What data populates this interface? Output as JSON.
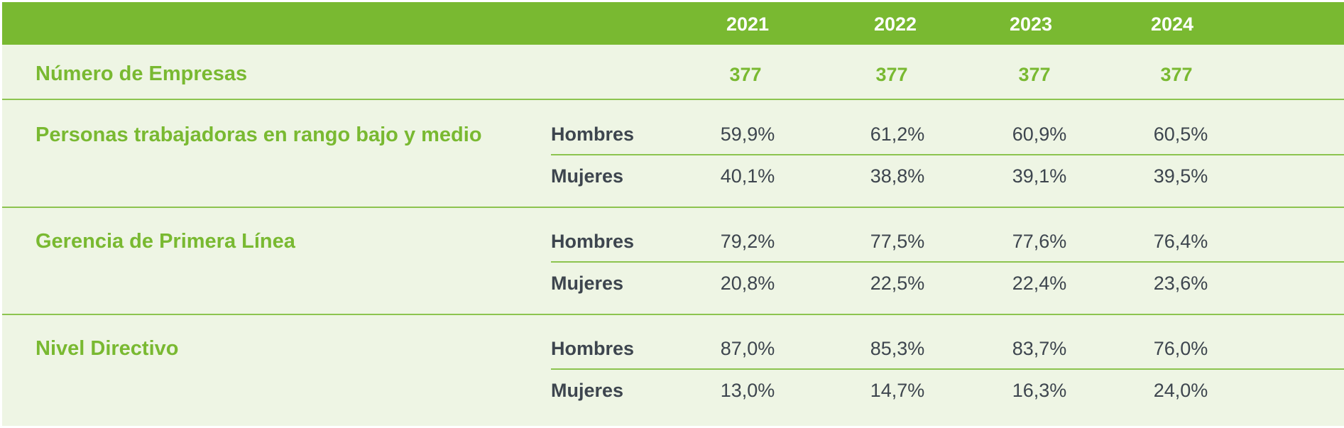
{
  "header": {
    "years": [
      "2021",
      "2022",
      "2023",
      "2024"
    ]
  },
  "empresas": {
    "label": "Número de Empresas",
    "values": [
      "377",
      "377",
      "377",
      "377"
    ]
  },
  "groups": [
    {
      "label": "Personas trabajadoras en rango bajo y medio",
      "rows": [
        {
          "name": "Hombres",
          "values": [
            "59,9%",
            "61,2%",
            "60,9%",
            "60,5%"
          ]
        },
        {
          "name": "Mujeres",
          "values": [
            "40,1%",
            "38,8%",
            "39,1%",
            "39,5%"
          ]
        }
      ]
    },
    {
      "label": "Gerencia de Primera Línea",
      "rows": [
        {
          "name": "Hombres",
          "values": [
            "79,2%",
            "77,5%",
            "77,6%",
            "76,4%"
          ]
        },
        {
          "name": "Mujeres",
          "values": [
            "20,8%",
            "22,5%",
            "22,4%",
            "23,6%"
          ]
        }
      ]
    },
    {
      "label": "Nivel Directivo",
      "rows": [
        {
          "name": "Hombres",
          "values": [
            "87,0%",
            "85,3%",
            "83,7%",
            "76,0%"
          ]
        },
        {
          "name": "Mujeres",
          "values": [
            "13,0%",
            "14,7%",
            "16,3%",
            "24,0%"
          ]
        }
      ]
    }
  ],
  "colors": {
    "accent": "#79b931",
    "background": "#eef5e4",
    "text": "#3d454e"
  }
}
